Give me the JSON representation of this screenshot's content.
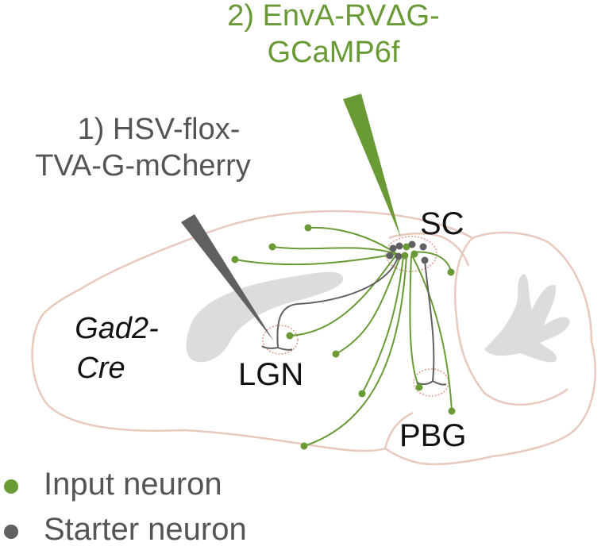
{
  "injections": {
    "step2_line1": "2) EnvA-RVΔG-",
    "step2_line2": "GCaMP6f",
    "step1_line1": "1) HSV-flox-",
    "step1_line2": "TVA-G-mCherry"
  },
  "regions": {
    "sc": "SC",
    "lgn": "LGN",
    "pbg": "PBG",
    "mouse_line1": "Gad2-",
    "mouse_line2": "Cre"
  },
  "legend": {
    "input": "Input neuron",
    "starter": "Starter neuron"
  },
  "colors": {
    "input_neuron": "#6a9a35",
    "starter_neuron": "#606060",
    "brain_outline": "#e8c9bd",
    "ventricle": "#dcdcdc",
    "region_circle": "#e49a8a",
    "hsv_pipette": "#606060",
    "rv_pipette": "#6a9a35"
  }
}
